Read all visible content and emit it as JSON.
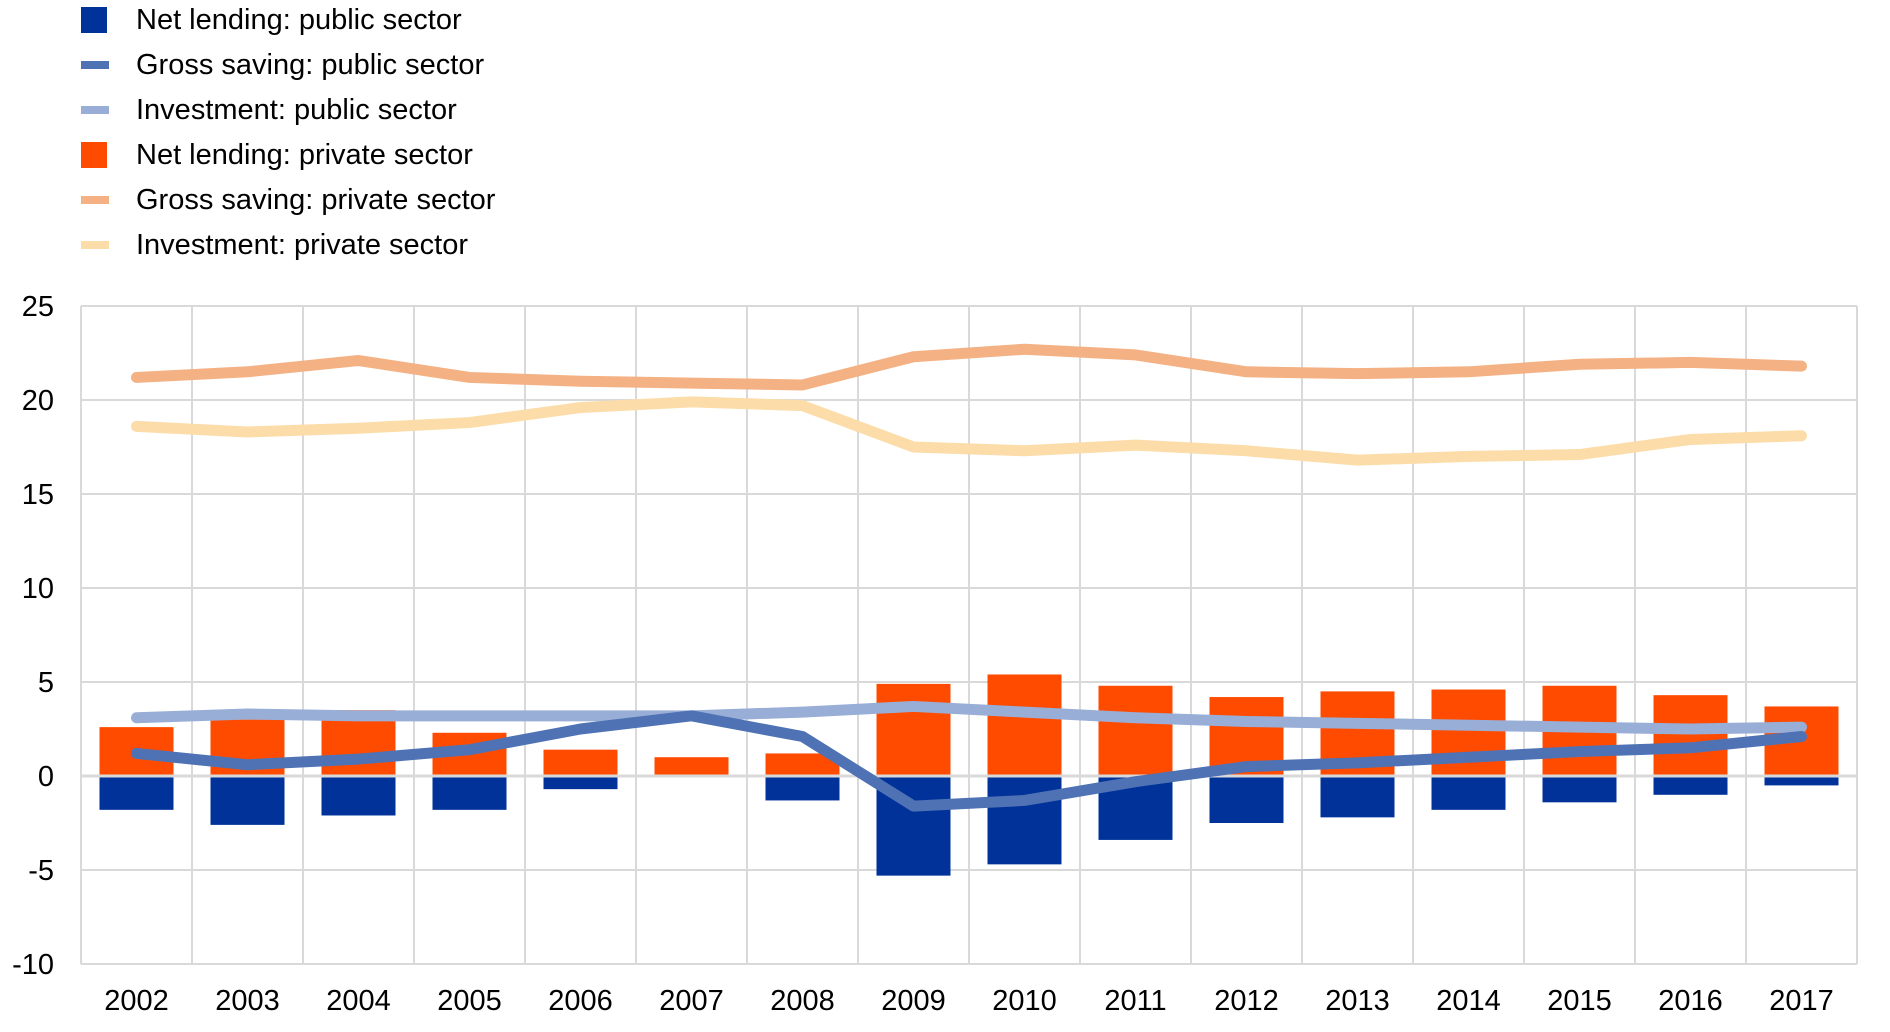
{
  "chart_data": {
    "type": "bar",
    "title": "",
    "xlabel": "",
    "ylabel": "",
    "ylim": [
      -10,
      25
    ],
    "yticks": [
      -10,
      -5,
      0,
      5,
      10,
      15,
      20,
      25
    ],
    "grid": true,
    "legend_position": "top-left",
    "categories": [
      "2002",
      "2003",
      "2004",
      "2005",
      "2006",
      "2007",
      "2008",
      "2009",
      "2010",
      "2011",
      "2012",
      "2013",
      "2014",
      "2015",
      "2016",
      "2017"
    ],
    "series": [
      {
        "name": "Net lending: public sector",
        "kind": "bar",
        "color": "#003299",
        "values": [
          -1.8,
          -2.6,
          -2.1,
          -1.8,
          -0.7,
          0.0,
          -1.3,
          -5.3,
          -4.7,
          -3.4,
          -2.5,
          -2.2,
          -1.8,
          -1.4,
          -1.0,
          -0.5
        ]
      },
      {
        "name": "Gross saving: public sector",
        "kind": "line",
        "color": "#4F72B5",
        "values": [
          1.2,
          0.6,
          0.9,
          1.4,
          2.5,
          3.2,
          2.1,
          -1.6,
          -1.3,
          -0.3,
          0.5,
          0.7,
          1.0,
          1.3,
          1.5,
          2.1
        ]
      },
      {
        "name": "Investment: public sector",
        "kind": "line",
        "color": "#98AED6",
        "values": [
          3.1,
          3.3,
          3.2,
          3.2,
          3.2,
          3.2,
          3.4,
          3.7,
          3.4,
          3.1,
          2.9,
          2.8,
          2.7,
          2.6,
          2.5,
          2.6
        ]
      },
      {
        "name": "Net lending: private sector",
        "kind": "bar",
        "color": "#FF4B00",
        "values": [
          2.6,
          3.0,
          3.5,
          2.3,
          1.4,
          1.0,
          1.2,
          4.9,
          5.4,
          4.8,
          4.2,
          4.5,
          4.6,
          4.8,
          4.3,
          3.7
        ]
      },
      {
        "name": "Gross saving: private sector",
        "kind": "line",
        "color": "#F4B183",
        "values": [
          21.2,
          21.5,
          22.1,
          21.2,
          21.0,
          20.9,
          20.8,
          22.3,
          22.7,
          22.4,
          21.5,
          21.4,
          21.5,
          21.9,
          22.0,
          21.8
        ]
      },
      {
        "name": "Investment: private sector",
        "kind": "line",
        "color": "#FCDCA8",
        "values": [
          18.6,
          18.3,
          18.5,
          18.8,
          19.6,
          19.9,
          19.7,
          17.5,
          17.3,
          17.6,
          17.3,
          16.8,
          17.0,
          17.1,
          17.9,
          18.1
        ]
      }
    ]
  },
  "legend": {
    "items": [
      {
        "label": "Net lending: public sector",
        "marker": "square",
        "color": "#003299"
      },
      {
        "label": "Gross saving: public sector",
        "marker": "line",
        "color": "#4F72B5"
      },
      {
        "label": "Investment: public sector",
        "marker": "line",
        "color": "#98AED6"
      },
      {
        "label": "Net lending: private sector",
        "marker": "square",
        "color": "#FF4B00"
      },
      {
        "label": "Gross saving: private sector",
        "marker": "line",
        "color": "#F4B183"
      },
      {
        "label": "Investment: private sector",
        "marker": "line",
        "color": "#FCDCA8"
      }
    ]
  },
  "style": {
    "grid_color": "#D9D9D9"
  }
}
